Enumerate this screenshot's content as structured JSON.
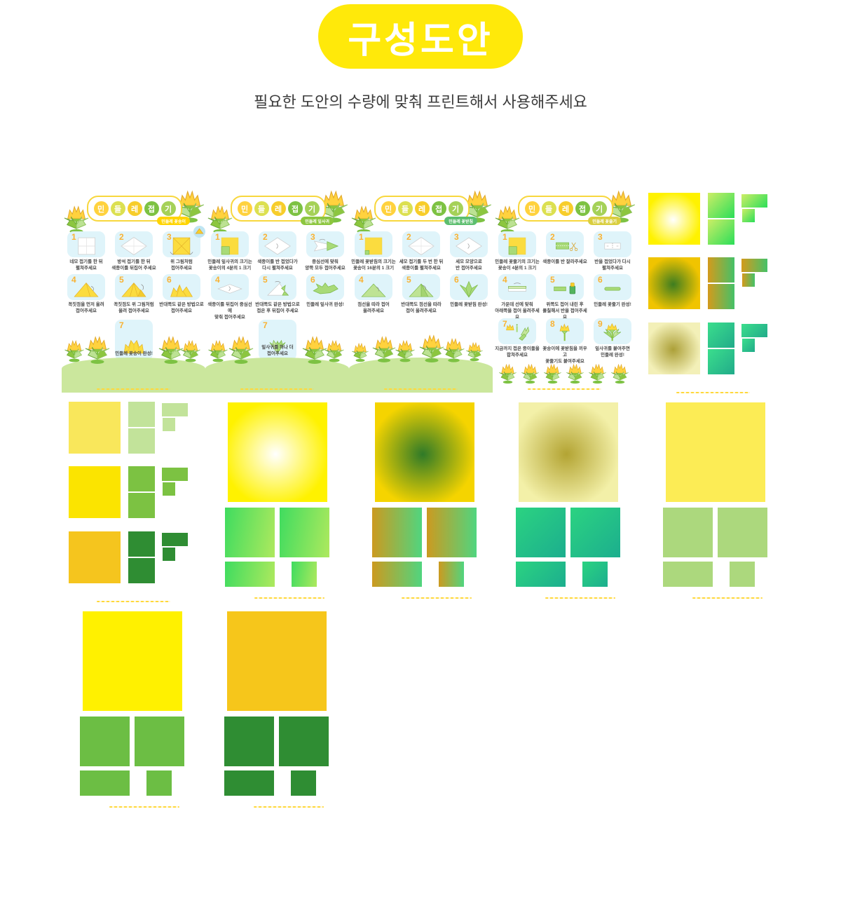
{
  "header": {
    "title": "구성도안",
    "subtitle": "필요한 도안의 수량에 맞춰 프린트해서 사용해주세요",
    "pill_color": "#FFE90A",
    "title_color": "#FFFFFF"
  },
  "sheet_title": {
    "chars": [
      {
        "ch": "민",
        "color": "#FFD23E"
      },
      {
        "ch": "들",
        "color": "#DCE051"
      },
      {
        "ch": "레",
        "color": "#F7CD2B"
      },
      {
        "ch": "접",
        "color": "#7DC243"
      },
      {
        "ch": "기",
        "color": "#A5D158"
      }
    ]
  },
  "instruction_sheets": [
    {
      "badge": {
        "label": "민들레 꽃송이",
        "color": "#FFD400"
      },
      "footer": "grass-4",
      "steps": [
        {
          "num": "1",
          "caption": "네모 접기를 한 뒤\n펼쳐주세요",
          "diagram": "square-grid"
        },
        {
          "num": "2",
          "caption": "방석 접기를 한 뒤\n색종이를 뒤집어 주세요",
          "diagram": "diamond-grid"
        },
        {
          "num": "3",
          "caption": "위 그림처럼\n접어주세요",
          "diagram": "yellow-x",
          "corner_icon": true
        },
        {
          "num": "4",
          "caption": "꼭짓점을 먼저 올려\n접어주세요",
          "diagram": "tri-yellow"
        },
        {
          "num": "5",
          "caption": "꼭짓점도 위 그림처럼\n올려 접어주세요",
          "diagram": "tri-yellow-fold"
        },
        {
          "num": "6",
          "caption": "반대쪽도 같은 방법으로\n접어주세요",
          "diagram": "fan-yellow"
        },
        {
          "num": "7",
          "caption": "민들레 꽃송이 완성!",
          "diagram": "flower-fan",
          "wide": true
        }
      ]
    },
    {
      "badge": {
        "label": "민들레 잎사귀",
        "color": "#8CC63F"
      },
      "footer": "grass-4",
      "steps": [
        {
          "num": "1",
          "caption": "민들레 잎사귀의 크기는\n꽃송이의 4분의 1 크기",
          "diagram": "sq-quarter"
        },
        {
          "num": "2",
          "caption": "색종이를 반 접었다가\n다시 펼쳐주세요",
          "diagram": "diamond-curl"
        },
        {
          "num": "3",
          "caption": "중심선에 맞춰\n양쪽 모두 접어주세요",
          "diagram": "arrow-green"
        },
        {
          "num": "4",
          "caption": "색종이를 뒤집어 중심선에\n맞춰 접어주세요",
          "diagram": "flat-diamond"
        },
        {
          "num": "5",
          "caption": "반대쪽도 같은 방법으로\n접은 후 뒤집어 주세요",
          "diagram": "tri-white-green"
        },
        {
          "num": "6",
          "caption": "민들레 잎사귀 완성!",
          "diagram": "leaf-green"
        },
        {
          "num": "7",
          "caption": "잎사귀를 하나 더\n접어주세요",
          "diagram": "leaf-pair",
          "wide": true
        }
      ]
    },
    {
      "badge": {
        "label": "민들레 꽃받침",
        "color": "#5CBE6E"
      },
      "footer": "grass-6",
      "steps": [
        {
          "num": "1",
          "caption": "민들레 꽃받침의 크기는\n꽃송이 16분의 1 크기",
          "diagram": "sq-16"
        },
        {
          "num": "2",
          "caption": "세모 접기를 두 번 한 뒤\n색종이를 펼쳐주세요",
          "diagram": "diamond-grid"
        },
        {
          "num": "3",
          "caption": "세모 모양으로\n반 접어주세요",
          "diagram": "diamond-curl"
        },
        {
          "num": "4",
          "caption": "점선을 따라 접어\n올려주세요",
          "diagram": "tri-green"
        },
        {
          "num": "5",
          "caption": "반대쪽도 점선을 따라\n접어 올려주세요",
          "diagram": "tri-green-fold"
        },
        {
          "num": "6",
          "caption": "민들레 꽃받침 완성!",
          "diagram": "calyx-green"
        }
      ]
    },
    {
      "badge": {
        "label": "민들레 꽃줄기",
        "color": "#D9CE3E"
      },
      "footer": "flowers-6",
      "steps": [
        {
          "num": "1",
          "caption": "민들레 꽃줄기의 크기는\n꽃송이 4분의 1 크기",
          "diagram": "sq-quarter"
        },
        {
          "num": "2",
          "caption": "색종이를 반 잘라주세요",
          "diagram": "strip-cut"
        },
        {
          "num": "3",
          "caption": "반을 접었다가 다시\n펼쳐주세요",
          "diagram": "rect-dots"
        },
        {
          "num": "4",
          "caption": "가운데 선에 맞춰\n아래쪽을 접어 올려주세요",
          "diagram": "rect-fold"
        },
        {
          "num": "5",
          "caption": "위쪽도 접어 내린 후\n풀칠해서 반을 접어주세요",
          "diagram": "strip-glue"
        },
        {
          "num": "6",
          "caption": "민들레 꽃줄기 완성!",
          "diagram": "strip-green"
        },
        {
          "num": "7",
          "caption": "지금까지 접은 종이들을\n합쳐주세요",
          "diagram": "parts-set"
        },
        {
          "num": "8",
          "caption": "꽃송이에 꽃받침을 끼우고\n꽃줄기도 붙여주세요",
          "diagram": "flower-stem"
        },
        {
          "num": "9",
          "caption": "잎사귀를 붙여주면\n민들레 완성!",
          "diagram": "flower-done"
        }
      ]
    }
  ],
  "swatch_sheets": [
    {
      "layout": "triple",
      "groups": [
        {
          "big": {
            "type": "radial",
            "center": "#FFFFFF",
            "edge": "#FFF200"
          },
          "green": {
            "type": "linear",
            "from": "#CDEE66",
            "to": "#2BDE59",
            "angle": 135
          }
        },
        {
          "big": {
            "type": "radial",
            "center": "#3E7D20",
            "edge": "#F0C400"
          },
          "green": {
            "type": "linear",
            "from": "#D49A1C",
            "to": "#44C168",
            "angle": 90
          }
        },
        {
          "big": {
            "type": "radial",
            "center": "#ACA038",
            "edge": "#F3F0B8"
          },
          "green": {
            "type": "linear",
            "from": "#3BDE8C",
            "to": "#21AB8A",
            "angle": 135
          }
        }
      ]
    },
    {
      "layout": "triple",
      "groups": [
        {
          "big": {
            "type": "solid",
            "color": "#F9E75B"
          },
          "green": {
            "type": "solid",
            "color": "#C2E39A"
          }
        },
        {
          "big": {
            "type": "solid",
            "color": "#FBE400"
          },
          "green": {
            "type": "solid",
            "color": "#7CC242"
          }
        },
        {
          "big": {
            "type": "solid",
            "color": "#F5C51E"
          },
          "green": {
            "type": "solid",
            "color": "#2F8D33"
          }
        }
      ]
    },
    {
      "layout": "single",
      "groups": [
        {
          "big": {
            "type": "radial",
            "center": "#FFFFFF",
            "edge": "#FFF200"
          },
          "green": {
            "type": "linear",
            "from": "#3FDC5F",
            "to": "#AEE95E",
            "angle": 100
          }
        }
      ]
    },
    {
      "layout": "single",
      "groups": [
        {
          "big": {
            "type": "radial",
            "center": "#2F7A28",
            "edge": "#F5D400"
          },
          "green": {
            "type": "linear",
            "from": "#CC9A20",
            "to": "#50D57F",
            "angle": 90
          }
        }
      ]
    },
    {
      "layout": "single",
      "groups": [
        {
          "big": {
            "type": "radial",
            "center": "#B3A433",
            "edge": "#F3F0A8"
          },
          "green": {
            "type": "linear",
            "from": "#2BD381",
            "to": "#1CAE8E",
            "angle": 135
          }
        }
      ]
    },
    {
      "layout": "single",
      "groups": [
        {
          "big": {
            "type": "solid",
            "color": "#FCEC55"
          },
          "green": {
            "type": "solid",
            "color": "#ACD87D"
          }
        }
      ]
    },
    {
      "layout": "single",
      "groups": [
        {
          "big": {
            "type": "solid",
            "color": "#FFF100"
          },
          "green": {
            "type": "solid",
            "color": "#6CBE44"
          }
        }
      ]
    },
    {
      "layout": "single",
      "groups": [
        {
          "big": {
            "type": "solid",
            "color": "#F6C61B"
          },
          "green": {
            "type": "solid",
            "color": "#2F8D33"
          }
        }
      ]
    }
  ]
}
